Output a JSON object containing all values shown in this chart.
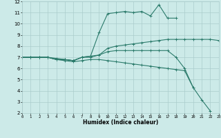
{
  "xlabel": "Humidex (Indice chaleur)",
  "bg_color": "#cceae8",
  "grid_color": "#aacccc",
  "line_color": "#2a7a6a",
  "xlim": [
    0,
    23
  ],
  "ylim": [
    2,
    12
  ],
  "xticks": [
    0,
    1,
    2,
    3,
    4,
    5,
    6,
    7,
    8,
    9,
    10,
    11,
    12,
    13,
    14,
    15,
    16,
    17,
    18,
    19,
    20,
    21,
    22,
    23
  ],
  "yticks": [
    2,
    3,
    4,
    5,
    6,
    7,
    8,
    9,
    10,
    11,
    12
  ],
  "series": [
    [
      7.0,
      7.0,
      7.0,
      7.0,
      6.8,
      6.8,
      6.7,
      7.0,
      7.1,
      7.2,
      7.8,
      8.0,
      8.1,
      8.2,
      8.3,
      8.4,
      8.5,
      8.6,
      8.6,
      8.6,
      8.6,
      8.6,
      8.6,
      8.5
    ],
    [
      7.0,
      7.0,
      7.0,
      7.0,
      6.9,
      6.8,
      6.7,
      7.0,
      7.1,
      9.2,
      10.9,
      11.0,
      11.1,
      11.0,
      11.1,
      10.7,
      11.7,
      10.5,
      10.5,
      null,
      null,
      null,
      null,
      null
    ],
    [
      7.0,
      7.0,
      7.0,
      7.0,
      6.8,
      6.8,
      6.7,
      7.0,
      7.0,
      7.2,
      7.5,
      7.6,
      7.6,
      7.6,
      7.6,
      7.6,
      7.6,
      7.6,
      7.0,
      6.0,
      4.3,
      3.2,
      2.2,
      null
    ],
    [
      7.0,
      7.0,
      7.0,
      7.0,
      6.8,
      6.7,
      6.6,
      6.7,
      6.8,
      6.8,
      6.7,
      6.6,
      6.5,
      6.4,
      6.3,
      6.2,
      6.1,
      6.0,
      5.9,
      5.8,
      4.3,
      null,
      null,
      null
    ]
  ]
}
